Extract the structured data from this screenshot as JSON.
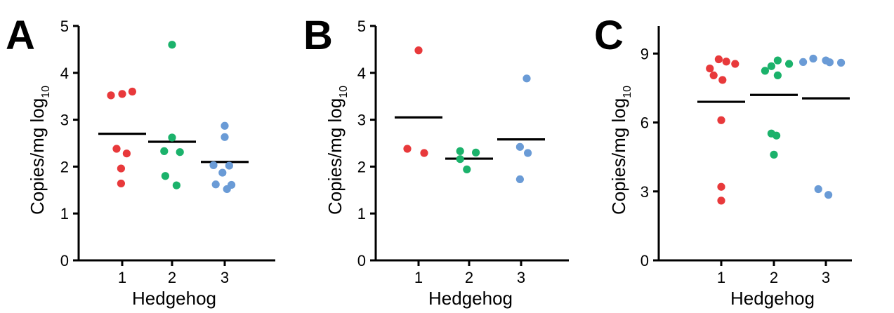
{
  "chart_data": [
    {
      "type": "scatter",
      "panel": "A",
      "ylabel": "Copies/mg log",
      "ylabel_sub": "10",
      "xlabel": "Hedgehog",
      "categories": [
        "1",
        "2",
        "3"
      ],
      "ylim": [
        0,
        5
      ],
      "yticks": [
        "0",
        "1",
        "2",
        "3",
        "4",
        "5"
      ],
      "series": [
        {
          "category": "1",
          "color": "#e8393b",
          "mean": 2.7,
          "points": [
            3.52,
            3.55,
            3.6,
            2.38,
            2.28,
            1.96,
            1.64
          ]
        },
        {
          "category": "2",
          "color": "#1bb26b",
          "mean": 2.53,
          "points": [
            4.6,
            2.62,
            2.33,
            2.31,
            1.8,
            1.6
          ]
        },
        {
          "category": "3",
          "color": "#6a9bd6",
          "mean": 2.1,
          "points": [
            2.87,
            2.63,
            2.03,
            2.02,
            1.87,
            1.62,
            1.61,
            1.52
          ]
        }
      ]
    },
    {
      "type": "scatter",
      "panel": "B",
      "ylabel": "Copies/mg log",
      "ylabel_sub": "10",
      "xlabel": "Hedgehog",
      "categories": [
        "1",
        "2",
        "3"
      ],
      "ylim": [
        0,
        5
      ],
      "yticks": [
        "0",
        "1",
        "2",
        "3",
        "4",
        "5"
      ],
      "series": [
        {
          "category": "1",
          "color": "#e8393b",
          "mean": 3.05,
          "points": [
            4.48,
            2.38,
            2.29
          ]
        },
        {
          "category": "2",
          "color": "#1bb26b",
          "mean": 2.17,
          "points": [
            2.33,
            2.3,
            2.16,
            1.94
          ]
        },
        {
          "category": "3",
          "color": "#6a9bd6",
          "mean": 2.58,
          "points": [
            3.88,
            2.42,
            2.29,
            1.73
          ]
        }
      ]
    },
    {
      "type": "scatter",
      "panel": "C",
      "ylabel": "Copies/mg log",
      "ylabel_sub": "10",
      "xlabel": "Hedgehog",
      "categories": [
        "1",
        "2",
        "3"
      ],
      "ylim": [
        0,
        10.2
      ],
      "yticks": [
        "0",
        "3",
        "6",
        "9"
      ],
      "ytick_values": [
        0,
        3,
        6,
        9
      ],
      "series": [
        {
          "category": "1",
          "color": "#e8393b",
          "mean": 6.9,
          "points": [
            8.75,
            8.65,
            8.55,
            8.35,
            8.05,
            7.85,
            6.1,
            3.2,
            2.6
          ]
        },
        {
          "category": "2",
          "color": "#1bb26b",
          "mean": 7.2,
          "points": [
            8.7,
            8.55,
            8.45,
            8.25,
            8.05,
            5.52,
            5.43,
            4.6
          ]
        },
        {
          "category": "3",
          "color": "#6a9bd6",
          "mean": 7.05,
          "points": [
            8.78,
            8.7,
            8.63,
            8.62,
            8.6,
            3.1,
            2.85
          ]
        }
      ]
    }
  ]
}
